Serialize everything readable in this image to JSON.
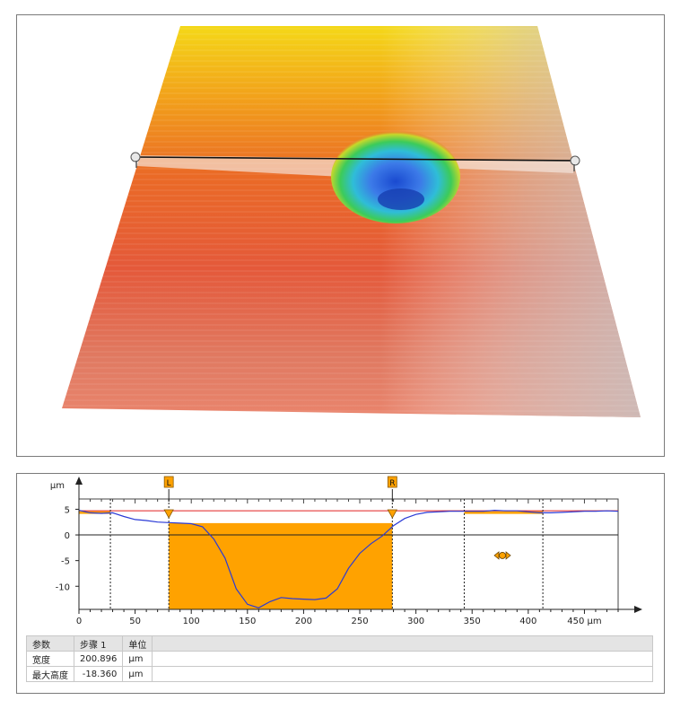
{
  "chart_data": {
    "type": "line",
    "ylabel": "µm",
    "xlabel": "",
    "xunit": "µm",
    "xlim": [
      0,
      480
    ],
    "ylim": [
      -14.5,
      7
    ],
    "xticks": [
      0,
      50,
      100,
      150,
      200,
      250,
      300,
      350,
      400,
      450
    ],
    "yticks": [
      5,
      0,
      -5,
      -10
    ],
    "reference_line": {
      "y": 4.7,
      "color": "#e02020"
    },
    "zero_line": {
      "y": 0
    },
    "series": [
      {
        "color": "#2a3ad6",
        "x": [
          0,
          10,
          20,
          30,
          40,
          50,
          60,
          70,
          80,
          90,
          100,
          110,
          120,
          130,
          140,
          150,
          160,
          170,
          180,
          190,
          200,
          210,
          220,
          230,
          240,
          250,
          260,
          270,
          280,
          290,
          300,
          310,
          320,
          330,
          340,
          350,
          360,
          370,
          380,
          390,
          400,
          410,
          420,
          430,
          440,
          450,
          460,
          470,
          480
        ],
        "y": [
          4.8,
          4.3,
          4.2,
          4.3,
          3.6,
          3.0,
          2.8,
          2.5,
          2.4,
          2.3,
          2.2,
          1.6,
          -0.8,
          -4.5,
          -10.5,
          -13.5,
          -14.2,
          -13.0,
          -12.2,
          -12.4,
          -12.5,
          -12.6,
          -12.3,
          -10.5,
          -6.5,
          -3.6,
          -1.7,
          -0.2,
          1.8,
          3.2,
          4.0,
          4.4,
          4.5,
          4.6,
          4.6,
          4.6,
          4.6,
          4.8,
          4.7,
          4.7,
          4.5,
          4.3,
          4.3,
          4.4,
          4.5,
          4.6,
          4.6,
          4.7,
          4.6
        ]
      }
    ],
    "markers": [
      {
        "label": "L",
        "x": 80
      },
      {
        "label": "R",
        "x": 279
      }
    ],
    "dashed_lines_x": [
      28,
      80,
      279,
      343,
      413
    ],
    "measurement_region": {
      "x": [
        80,
        279
      ],
      "y": [
        -14.5,
        2.3
      ],
      "color": "#ffa200"
    },
    "reference_regions": [
      {
        "x": [
          0,
          28
        ],
        "y": [
          4.1,
          4.6
        ]
      },
      {
        "x": [
          343,
          413
        ],
        "y": [
          4.1,
          4.6
        ]
      }
    ],
    "move_handle": {
      "x": 377,
      "y": -4.0
    },
    "table": {
      "headers": [
        "参数",
        "步骤 1",
        "单位"
      ],
      "rows": [
        [
          "宽度",
          "200.896",
          "µm"
        ],
        [
          "最大高度",
          "-18.360",
          "µm"
        ]
      ]
    }
  },
  "colors": {
    "surface_high": "#f2d21a",
    "surface_mid": "#e8642e",
    "surface_low": "#c9b8b2",
    "crater_outer": "#38c95a",
    "crater_inner": "#2d6fe0",
    "region_fill": "#ffa200",
    "profile_line": "#2a3ad6",
    "reference_line": "#e02020"
  }
}
